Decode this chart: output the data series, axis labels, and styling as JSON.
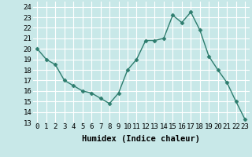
{
  "x": [
    0,
    1,
    2,
    3,
    4,
    5,
    6,
    7,
    8,
    9,
    10,
    11,
    12,
    13,
    14,
    15,
    16,
    17,
    18,
    19,
    20,
    21,
    22,
    23
  ],
  "y": [
    20,
    19,
    18.5,
    17,
    16.5,
    16,
    15.8,
    15.3,
    14.8,
    15.8,
    18,
    19,
    20.8,
    20.8,
    21,
    23.2,
    22.5,
    23.5,
    21.8,
    19.3,
    18,
    16.8,
    15,
    13.3
  ],
  "line_color": "#2e7d6e",
  "marker": "D",
  "marker_size": 2.5,
  "bg_color": "#c8e8e8",
  "grid_color": "#ffffff",
  "xlabel": "Humidex (Indice chaleur)",
  "ylim": [
    13,
    24.5
  ],
  "xlim": [
    -0.5,
    23.5
  ],
  "yticks": [
    13,
    14,
    15,
    16,
    17,
    18,
    19,
    20,
    21,
    22,
    23,
    24
  ],
  "xticks": [
    0,
    1,
    2,
    3,
    4,
    5,
    6,
    7,
    8,
    9,
    10,
    11,
    12,
    13,
    14,
    15,
    16,
    17,
    18,
    19,
    20,
    21,
    22,
    23
  ],
  "xtick_labels": [
    "0",
    "1",
    "2",
    "3",
    "4",
    "5",
    "6",
    "7",
    "8",
    "9",
    "10",
    "11",
    "12",
    "13",
    "14",
    "15",
    "16",
    "17",
    "18",
    "19",
    "20",
    "21",
    "22",
    "23"
  ],
  "tick_fontsize": 6.5,
  "xlabel_fontsize": 7.5,
  "linewidth": 1.0
}
